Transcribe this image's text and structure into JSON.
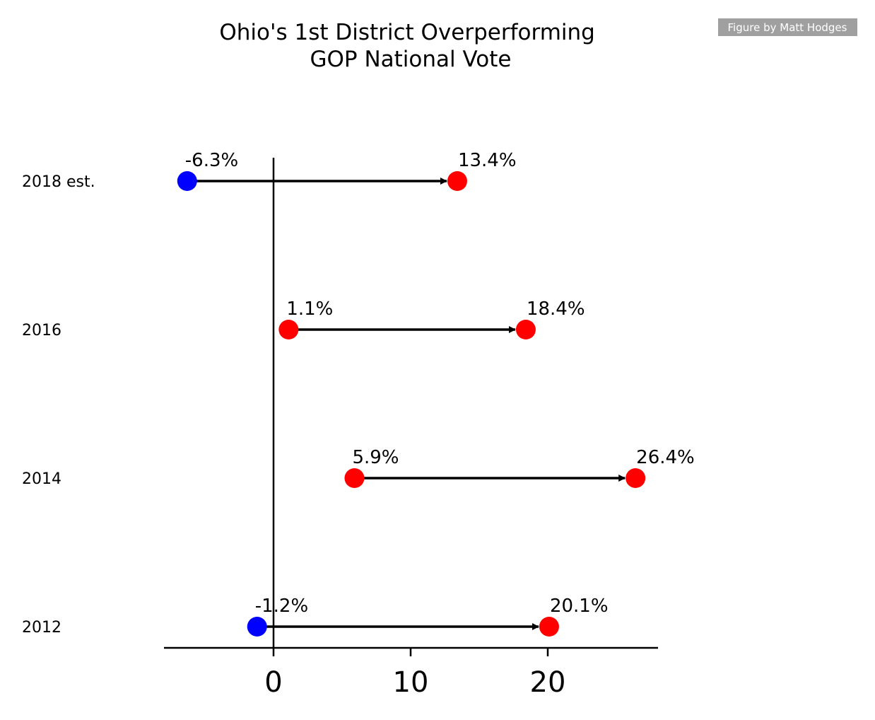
{
  "chart_data": {
    "type": "dumbbell",
    "title": "Ohio's 1st District Overperforming\nGOP National Vote",
    "credit": "Figure by Matt Hodges",
    "categories": [
      "2018 est.",
      "2016",
      "2014",
      "2012"
    ],
    "rows": [
      {
        "category": "2018 est.",
        "start": -6.3,
        "start_label": "-6.3%",
        "start_color": "#0000ff",
        "end": 13.4,
        "end_label": "13.4%",
        "end_color": "#ff0000"
      },
      {
        "category": "2016",
        "start": 1.1,
        "start_label": "1.1%",
        "start_color": "#ff0000",
        "end": 18.4,
        "end_label": "18.4%",
        "end_color": "#ff0000"
      },
      {
        "category": "2014",
        "start": 5.9,
        "start_label": "5.9%",
        "start_color": "#ff0000",
        "end": 26.4,
        "end_label": "26.4%",
        "end_color": "#ff0000"
      },
      {
        "category": "2012",
        "start": -1.2,
        "start_label": "-1.2%",
        "start_color": "#0000ff",
        "end": 20.1,
        "end_label": "20.1%",
        "end_color": "#ff0000"
      }
    ],
    "xticks": [
      0,
      10,
      20
    ],
    "xtick_labels": [
      "0",
      "10",
      "20"
    ],
    "xlim": [
      -8,
      28
    ],
    "reference_line": 0,
    "arrow_color": "#000000",
    "credit_background": "#a0a0a0",
    "grid": false
  }
}
